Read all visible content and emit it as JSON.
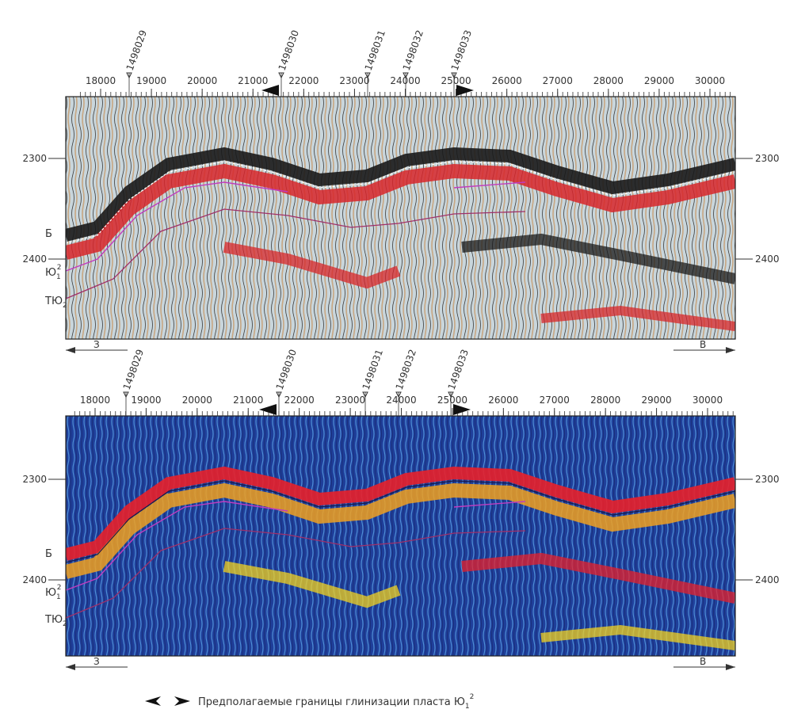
{
  "panels": [
    {
      "wells": [
        "1498029",
        "1498030",
        "1498031",
        "1498032",
        "1498033"
      ],
      "distance_ticks": [
        18000,
        19000,
        20000,
        21000,
        22000,
        23000,
        24000,
        25000,
        26000,
        27000,
        28000,
        29000,
        30000
      ],
      "depth_ticks": [
        2300,
        2400
      ],
      "horizons": [
        {
          "base": "Б"
        },
        {
          "base": "Ю",
          "sub": "1",
          "sup": "2"
        },
        {
          "base": "ТЮ",
          "sub": "2"
        }
      ],
      "directions": {
        "west": "З",
        "east": "В"
      }
    },
    {
      "wells": [
        "1498029",
        "1498030",
        "1498031",
        "1498032",
        "1498033"
      ],
      "distance_ticks": [
        18000,
        19000,
        20000,
        21000,
        22000,
        23000,
        24000,
        25000,
        26000,
        27000,
        28000,
        29000,
        30000
      ],
      "depth_ticks": [
        2300,
        2400
      ],
      "horizons": [
        {
          "base": "Б"
        },
        {
          "base": "Ю",
          "sub": "1",
          "sup": "2"
        },
        {
          "base": "ТЮ",
          "sub": "2"
        }
      ],
      "directions": {
        "west": "З",
        "east": "В"
      }
    }
  ],
  "legend": {
    "text": "Предполагаемые границы глинизации пласта Ю",
    "sub": "1",
    "sup": "2"
  }
}
